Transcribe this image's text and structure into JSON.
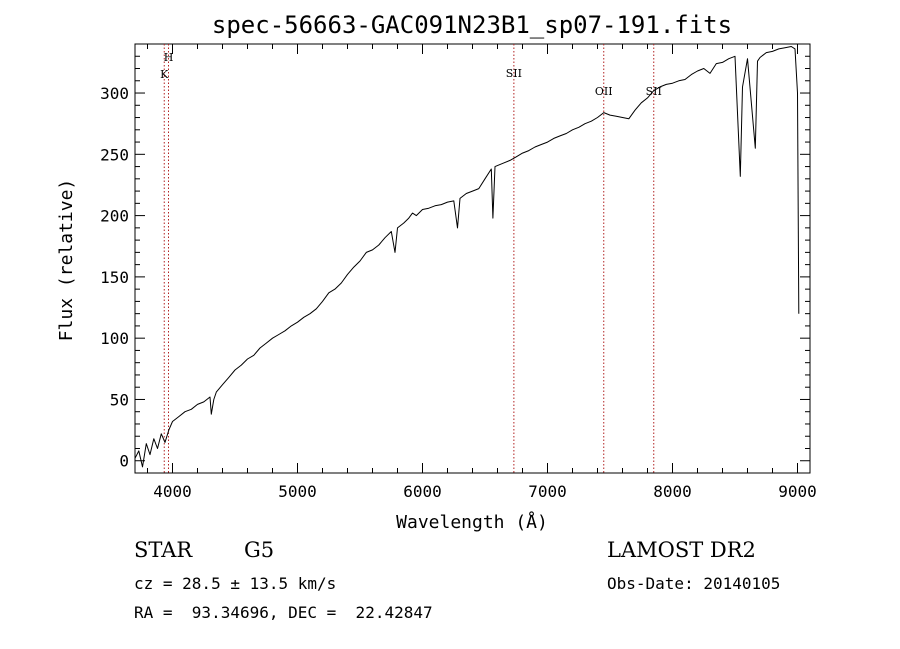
{
  "chart_data": {
    "type": "line",
    "title": "spec-56663-GAC091N23B1_sp07-191.fits",
    "xlabel": "Wavelength (Å)",
    "ylabel": "Flux (relative)",
    "xlim": [
      3700,
      9100
    ],
    "ylim": [
      -10,
      340
    ],
    "xticks": [
      4000,
      5000,
      6000,
      7000,
      8000,
      9000
    ],
    "yticks": [
      0,
      50,
      100,
      150,
      200,
      250,
      300
    ],
    "grid": false,
    "line_color": "#000000",
    "marker_color": "#b22222",
    "lines": [
      {
        "name": "H",
        "x": 3968
      },
      {
        "name": "K",
        "x": 3934
      },
      {
        "name": "SII",
        "x": 6731
      },
      {
        "name": "OII",
        "x": 7450
      },
      {
        "name": "SII",
        "x": 7850
      }
    ],
    "series": [
      {
        "x": [
          3700,
          3730,
          3760,
          3790,
          3820,
          3850,
          3880,
          3910,
          3940,
          3970,
          4000,
          4050,
          4100,
          4150,
          4200,
          4250,
          4300,
          4310,
          4330,
          4350,
          4400,
          4450,
          4500,
          4550,
          4600,
          4650,
          4700,
          4750,
          4800,
          4850,
          4900,
          4950,
          5000,
          5050,
          5100,
          5150,
          5200,
          5250,
          5300,
          5350,
          5400,
          5450,
          5500,
          5550,
          5600,
          5650,
          5700,
          5750,
          5780,
          5800,
          5850,
          5890,
          5920,
          5950,
          6000,
          6050,
          6100,
          6150,
          6200,
          6250,
          6280,
          6300,
          6350,
          6400,
          6450,
          6500,
          6550,
          6563,
          6580,
          6650,
          6700,
          6750,
          6800,
          6850,
          6900,
          6950,
          7000,
          7050,
          7100,
          7150,
          7200,
          7250,
          7300,
          7350,
          7400,
          7450,
          7500,
          7550,
          7600,
          7650,
          7700,
          7750,
          7800,
          7850,
          7900,
          7950,
          8000,
          8050,
          8100,
          8150,
          8200,
          8250,
          8300,
          8350,
          8400,
          8450,
          8500,
          8542,
          8560,
          8600,
          8662,
          8680,
          8700,
          8750,
          8800,
          8850,
          8900,
          8950,
          8980,
          9000,
          9010
        ],
        "y": [
          2,
          8,
          -5,
          14,
          5,
          18,
          10,
          22,
          15,
          25,
          32,
          36,
          40,
          42,
          46,
          48,
          52,
          38,
          50,
          56,
          62,
          68,
          74,
          78,
          83,
          86,
          92,
          96,
          100,
          103,
          106,
          110,
          113,
          117,
          120,
          124,
          130,
          137,
          140,
          145,
          152,
          158,
          163,
          170,
          172,
          176,
          182,
          187,
          170,
          190,
          194,
          198,
          202,
          200,
          205,
          206,
          208,
          209,
          211,
          212,
          190,
          214,
          218,
          220,
          222,
          230,
          238,
          198,
          240,
          243,
          245,
          248,
          251,
          253,
          256,
          258,
          260,
          263,
          265,
          267,
          270,
          272,
          275,
          277,
          280,
          284,
          282,
          281,
          280,
          279,
          286,
          292,
          296,
          302,
          305,
          307,
          308,
          310,
          311,
          315,
          318,
          320,
          316,
          324,
          325,
          328,
          330,
          232,
          305,
          328,
          255,
          326,
          329,
          333,
          334,
          336,
          337,
          338,
          336,
          300,
          120
        ]
      }
    ]
  },
  "info": {
    "object_type": "STAR",
    "subclass": "G5",
    "survey": "LAMOST DR2",
    "redshift_line": "cz = 28.5 ± 13.5 km/s",
    "obs_date_line": "Obs-Date: 20140105",
    "coords_line": "RA =  93.34696, DEC =  22.42847"
  }
}
